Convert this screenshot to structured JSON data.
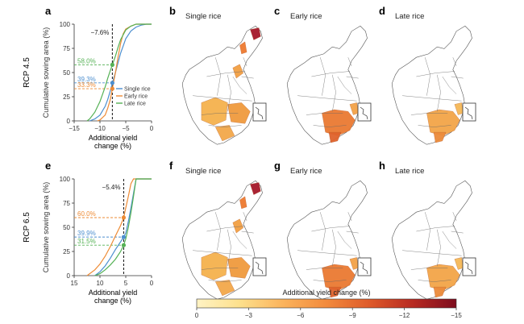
{
  "figure": {
    "colorbar": {
      "title": "Additional yield change (%)",
      "ticks": [
        "0",
        "−3",
        "−6",
        "−9",
        "−12",
        "−15"
      ],
      "colors": [
        "#fff3c4",
        "#fde08c",
        "#fbb35c",
        "#f28a3c",
        "#de5a2a",
        "#b72a22",
        "#7d0c1e"
      ]
    }
  },
  "chart_data": [
    {
      "panel": "a",
      "type": "line",
      "row_label": "RCP 4.5",
      "xlabel": "Additional yield change (%)",
      "ylabel": "Cumulative sowing area (%)",
      "xlim": [
        -15,
        0
      ],
      "ylim": [
        0,
        100
      ],
      "xticks": [
        "−15",
        "−10",
        "−5",
        "0"
      ],
      "yticks": [
        "0",
        "25",
        "50",
        "75",
        "100"
      ],
      "vline": {
        "x": -7.6,
        "label": "−7.6%"
      },
      "annotations": [
        {
          "text": "58.0%",
          "y": 58.0,
          "color": "#55b155"
        },
        {
          "text": "39.3%",
          "y": 39.3,
          "color": "#4d8fcf"
        },
        {
          "text": "33.3%",
          "y": 33.3,
          "color": "#ee8b35"
        }
      ],
      "legend": {
        "position": "bottom-right",
        "entries": [
          "Single rice",
          "Early rice",
          "Late rice"
        ]
      },
      "series": [
        {
          "name": "Single rice",
          "color": "#4d8fcf",
          "x": [
            -12,
            -11,
            -10,
            -9,
            -8.5,
            -8,
            -7.6,
            -7,
            -6.5,
            -6,
            -5,
            -4,
            -3,
            -2,
            -1,
            0
          ],
          "y": [
            0,
            2,
            6,
            15,
            22,
            31,
            39.3,
            50,
            60,
            70,
            85,
            93,
            97,
            99,
            100,
            100
          ]
        },
        {
          "name": "Early rice",
          "color": "#ee8b35",
          "x": [
            -10.5,
            -10,
            -9,
            -8.5,
            -8,
            -7.6,
            -7,
            -6.5,
            -6,
            -5.5,
            -5,
            -4,
            -3,
            -2,
            0
          ],
          "y": [
            0,
            1,
            6,
            13,
            22,
            33.3,
            50,
            66,
            80,
            90,
            95,
            98,
            100,
            100,
            100
          ]
        },
        {
          "name": "Late rice",
          "color": "#55b155",
          "x": [
            -12.5,
            -12,
            -11,
            -10,
            -9,
            -8.5,
            -8,
            -7.6,
            -7,
            -6.5,
            -6,
            -5,
            -4,
            -3,
            0
          ],
          "y": [
            0,
            2,
            9,
            20,
            35,
            44,
            52,
            58,
            67,
            76,
            84,
            94,
            98,
            100,
            100
          ]
        }
      ]
    },
    {
      "panel": "e",
      "type": "line",
      "row_label": "RCP 6.5",
      "xlabel": "Additional yield change (%)",
      "ylabel": "Cumulative sowing area (%)",
      "xlim": [
        15,
        0
      ],
      "ylim": [
        0,
        100
      ],
      "xticks": [
        "15",
        "10",
        "5",
        "0"
      ],
      "yticks": [
        "0",
        "25",
        "50",
        "75",
        "100"
      ],
      "vline": {
        "x": 5.4,
        "label": "−5.4%"
      },
      "annotations": [
        {
          "text": "60.0%",
          "y": 60.0,
          "color": "#ee8b35"
        },
        {
          "text": "39.9%",
          "y": 39.9,
          "color": "#4d8fcf"
        },
        {
          "text": "31.5%",
          "y": 31.5,
          "color": "#55b155"
        }
      ],
      "series": [
        {
          "name": "Single rice",
          "color": "#4d8fcf",
          "x": [
            11,
            10,
            9,
            8,
            7,
            6,
            5.4,
            5,
            4.5,
            4,
            3.5,
            3,
            0
          ],
          "y": [
            0,
            4,
            10,
            18,
            27,
            35,
            39.9,
            44,
            56,
            70,
            85,
            100,
            100
          ]
        },
        {
          "name": "Early rice",
          "color": "#ee8b35",
          "x": [
            12.5,
            11,
            10,
            9,
            8,
            7,
            6,
            5.4,
            5,
            4.5,
            4,
            3.5,
            0
          ],
          "y": [
            0,
            6,
            12,
            20,
            30,
            41,
            52,
            60,
            70,
            82,
            95,
            100,
            100
          ]
        },
        {
          "name": "Late rice",
          "color": "#55b155",
          "x": [
            11,
            10,
            9,
            8,
            7,
            6,
            5.4,
            5,
            4.5,
            4,
            3.5,
            3,
            0
          ],
          "y": [
            0,
            2,
            6,
            11,
            17,
            25,
            31.5,
            38,
            50,
            65,
            82,
            100,
            100
          ]
        }
      ]
    }
  ],
  "maps": [
    {
      "letter": "b",
      "title": "Single rice",
      "crop": "single"
    },
    {
      "letter": "c",
      "title": "Early rice",
      "crop": "early"
    },
    {
      "letter": "d",
      "title": "Late rice",
      "crop": "late"
    },
    {
      "letter": "f",
      "title": "Single rice",
      "crop": "single"
    },
    {
      "letter": "g",
      "title": "Early rice",
      "crop": "early"
    },
    {
      "letter": "h",
      "title": "Late rice",
      "crop": "late"
    }
  ]
}
